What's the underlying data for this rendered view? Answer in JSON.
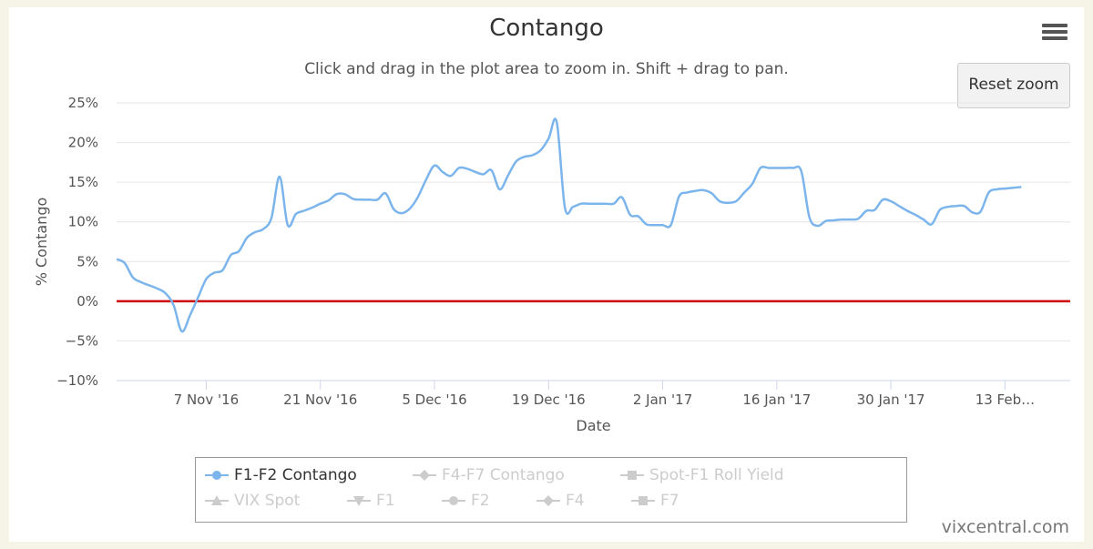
{
  "title": "Contango",
  "subtitle": "Click and drag in the plot area to zoom in. Shift + drag to pan.",
  "reset_zoom_label": "Reset zoom",
  "credit": "vixcentral.com",
  "colors": {
    "series": "#7cb5ec",
    "zero_line": "#cc0000",
    "grid": "#e6e6e6",
    "legend_inactive": "#cccccc",
    "background": "#f6f3e7"
  },
  "icons": {
    "menu": "hamburger-menu-icon"
  },
  "chart_data": {
    "type": "line",
    "title": "Contango",
    "xlabel": "Date",
    "ylabel": "% Contango",
    "ylim": [
      -10,
      25
    ],
    "yticks": [
      "25%",
      "20%",
      "15%",
      "10%",
      "5%",
      "0%",
      "−5%",
      "−10%"
    ],
    "xticks": [
      "7 Nov '16",
      "21 Nov '16",
      "5 Dec '16",
      "19 Dec '16",
      "2 Jan '17",
      "16 Jan '17",
      "30 Jan '17",
      "13 Feb…"
    ],
    "x_range": [
      "2016-10-27",
      "2017-02-21"
    ],
    "grid": true,
    "reference_line": {
      "y": 0
    },
    "legend_position": "bottom",
    "series": [
      {
        "name": "F1-F2 Contango",
        "visible": true,
        "points": [
          [
            "2016-10-27",
            5.3
          ],
          [
            "2016-10-28",
            4.8
          ],
          [
            "2016-10-29",
            3.0
          ],
          [
            "2016-10-30",
            2.4
          ],
          [
            "2016-10-31",
            2.0
          ],
          [
            "2016-11-01",
            1.6
          ],
          [
            "2016-11-02",
            1.0
          ],
          [
            "2016-11-03",
            -0.5
          ],
          [
            "2016-11-04",
            -3.8
          ],
          [
            "2016-11-05",
            -1.8
          ],
          [
            "2016-11-06",
            0.5
          ],
          [
            "2016-11-07",
            2.8
          ],
          [
            "2016-11-08",
            3.6
          ],
          [
            "2016-11-09",
            3.9
          ],
          [
            "2016-11-10",
            5.8
          ],
          [
            "2016-11-11",
            6.3
          ],
          [
            "2016-11-12",
            8.0
          ],
          [
            "2016-11-13",
            8.7
          ],
          [
            "2016-11-14",
            9.1
          ],
          [
            "2016-11-15",
            10.5
          ],
          [
            "2016-11-16",
            15.7
          ],
          [
            "2016-11-17",
            9.6
          ],
          [
            "2016-11-18",
            11.0
          ],
          [
            "2016-11-19",
            11.4
          ],
          [
            "2016-11-20",
            11.8
          ],
          [
            "2016-11-21",
            12.3
          ],
          [
            "2016-11-22",
            12.7
          ],
          [
            "2016-11-23",
            13.5
          ],
          [
            "2016-11-24",
            13.5
          ],
          [
            "2016-11-25",
            12.9
          ],
          [
            "2016-11-26",
            12.8
          ],
          [
            "2016-11-27",
            12.8
          ],
          [
            "2016-11-28",
            12.8
          ],
          [
            "2016-11-29",
            13.6
          ],
          [
            "2016-11-30",
            11.6
          ],
          [
            "2016-12-01",
            11.1
          ],
          [
            "2016-12-02",
            11.7
          ],
          [
            "2016-12-03",
            13.2
          ],
          [
            "2016-12-04",
            15.4
          ],
          [
            "2016-12-05",
            17.1
          ],
          [
            "2016-12-06",
            16.3
          ],
          [
            "2016-12-07",
            15.8
          ],
          [
            "2016-12-08",
            16.8
          ],
          [
            "2016-12-09",
            16.7
          ],
          [
            "2016-12-10",
            16.3
          ],
          [
            "2016-12-11",
            16.0
          ],
          [
            "2016-12-12",
            16.5
          ],
          [
            "2016-12-13",
            14.1
          ],
          [
            "2016-12-14",
            15.8
          ],
          [
            "2016-12-15",
            17.6
          ],
          [
            "2016-12-16",
            18.2
          ],
          [
            "2016-12-17",
            18.4
          ],
          [
            "2016-12-18",
            19.0
          ],
          [
            "2016-12-19",
            20.5
          ],
          [
            "2016-12-20",
            22.6
          ],
          [
            "2016-12-21",
            11.8
          ],
          [
            "2016-12-22",
            11.9
          ],
          [
            "2016-12-23",
            12.3
          ],
          [
            "2016-12-24",
            12.3
          ],
          [
            "2016-12-25",
            12.3
          ],
          [
            "2016-12-26",
            12.3
          ],
          [
            "2016-12-27",
            12.3
          ],
          [
            "2016-12-28",
            13.1
          ],
          [
            "2016-12-29",
            10.9
          ],
          [
            "2016-12-30",
            10.7
          ],
          [
            "2016-12-31",
            9.7
          ],
          [
            "2017-01-01",
            9.6
          ],
          [
            "2017-01-02",
            9.6
          ],
          [
            "2017-01-03",
            9.6
          ],
          [
            "2017-01-04",
            13.2
          ],
          [
            "2017-01-05",
            13.7
          ],
          [
            "2017-01-06",
            13.9
          ],
          [
            "2017-01-07",
            14.0
          ],
          [
            "2017-01-08",
            13.6
          ],
          [
            "2017-01-09",
            12.6
          ],
          [
            "2017-01-10",
            12.4
          ],
          [
            "2017-01-11",
            12.6
          ],
          [
            "2017-01-12",
            13.7
          ],
          [
            "2017-01-13",
            14.8
          ],
          [
            "2017-01-14",
            16.8
          ],
          [
            "2017-01-15",
            16.8
          ],
          [
            "2017-01-16",
            16.8
          ],
          [
            "2017-01-17",
            16.8
          ],
          [
            "2017-01-18",
            16.8
          ],
          [
            "2017-01-19",
            16.4
          ],
          [
            "2017-01-20",
            10.6
          ],
          [
            "2017-01-21",
            9.5
          ],
          [
            "2017-01-22",
            10.1
          ],
          [
            "2017-01-23",
            10.2
          ],
          [
            "2017-01-24",
            10.3
          ],
          [
            "2017-01-25",
            10.3
          ],
          [
            "2017-01-26",
            10.4
          ],
          [
            "2017-01-27",
            11.4
          ],
          [
            "2017-01-28",
            11.5
          ],
          [
            "2017-01-29",
            12.8
          ],
          [
            "2017-01-30",
            12.6
          ],
          [
            "2017-01-31",
            12.0
          ],
          [
            "2017-02-01",
            11.4
          ],
          [
            "2017-02-02",
            10.9
          ],
          [
            "2017-02-03",
            10.3
          ],
          [
            "2017-02-04",
            9.7
          ],
          [
            "2017-02-05",
            11.5
          ],
          [
            "2017-02-06",
            11.9
          ],
          [
            "2017-02-07",
            12.0
          ],
          [
            "2017-02-08",
            12.0
          ],
          [
            "2017-02-09",
            11.2
          ],
          [
            "2017-02-10",
            11.3
          ],
          [
            "2017-02-11",
            13.7
          ],
          [
            "2017-02-12",
            14.1
          ],
          [
            "2017-02-13",
            14.2
          ],
          [
            "2017-02-14",
            14.3
          ],
          [
            "2017-02-15",
            14.4
          ]
        ]
      },
      {
        "name": "F4-F7 Contango",
        "visible": false,
        "points": []
      },
      {
        "name": "Spot-F1 Roll Yield",
        "visible": false,
        "points": []
      },
      {
        "name": "VIX Spot",
        "visible": false,
        "points": []
      },
      {
        "name": "F1",
        "visible": false,
        "points": []
      },
      {
        "name": "F2",
        "visible": false,
        "points": []
      },
      {
        "name": "F4",
        "visible": false,
        "points": []
      },
      {
        "name": "F7",
        "visible": false,
        "points": []
      }
    ]
  },
  "legend": {
    "items": [
      {
        "label": "F1-F2 Contango",
        "symbol": "circle",
        "active": true
      },
      {
        "label": "F4-F7 Contango",
        "symbol": "diamond",
        "active": false
      },
      {
        "label": "Spot-F1 Roll Yield",
        "symbol": "square",
        "active": false
      },
      {
        "label": "VIX Spot",
        "symbol": "triangle",
        "active": false
      },
      {
        "label": "F1",
        "symbol": "triangle-down",
        "active": false
      },
      {
        "label": "F2",
        "symbol": "circle",
        "active": false
      },
      {
        "label": "F4",
        "symbol": "diamond",
        "active": false
      },
      {
        "label": "F7",
        "symbol": "square",
        "active": false
      }
    ]
  }
}
